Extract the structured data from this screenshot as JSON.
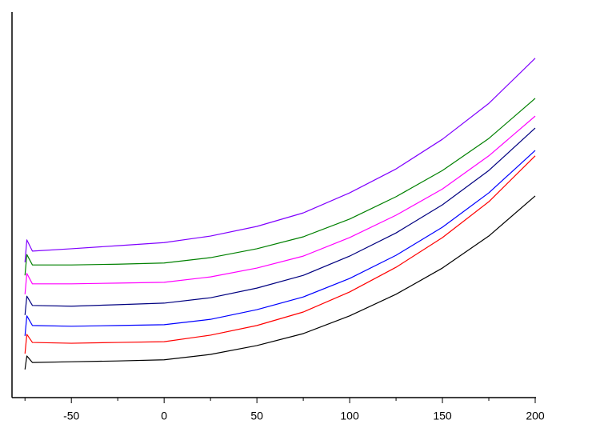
{
  "chart_data": {
    "type": "line",
    "x": [
      -75,
      -74,
      -71,
      -50,
      -25,
      0,
      25,
      50,
      75,
      100,
      125,
      150,
      175,
      200
    ],
    "series": [
      {
        "color": "#000000",
        "values": [
          7.3,
          10.8,
          9.1,
          9.3,
          9.5,
          9.8,
          11.2,
          13.5,
          16.6,
          21.2,
          26.8,
          33.6,
          41.9,
          52.3
        ]
      },
      {
        "color": "#ff0000",
        "values": [
          11.4,
          16.4,
          14.3,
          14.1,
          14.3,
          14.5,
          16.2,
          18.7,
          22.2,
          27.4,
          33.8,
          41.5,
          50.8,
          62.7
        ]
      },
      {
        "color": "#0000ff",
        "values": [
          16.0,
          21.2,
          18.7,
          18.5,
          18.7,
          18.9,
          20.3,
          22.8,
          26.1,
          30.9,
          36.9,
          44.2,
          53.1,
          64.1
        ]
      },
      {
        "color": "#000080",
        "values": [
          21.4,
          26.3,
          23.9,
          23.7,
          24.1,
          24.5,
          25.9,
          28.4,
          31.7,
          36.7,
          42.7,
          50.0,
          58.9,
          69.9
        ]
      },
      {
        "color": "#ff00ff",
        "values": [
          26.8,
          32.2,
          29.5,
          29.5,
          29.7,
          29.9,
          31.3,
          33.6,
          36.7,
          41.5,
          47.3,
          54.1,
          62.7,
          73.0
        ]
      },
      {
        "color": "#008000",
        "values": [
          31.7,
          37.1,
          34.4,
          34.4,
          34.6,
          34.9,
          36.3,
          38.6,
          41.7,
          46.3,
          52.1,
          58.9,
          67.2,
          77.6
        ]
      },
      {
        "color": "#8000ff",
        "values": [
          35.1,
          40.9,
          38.0,
          38.6,
          39.4,
          40.2,
          41.9,
          44.4,
          47.9,
          53.1,
          59.3,
          67.0,
          76.3,
          88.0
        ]
      }
    ],
    "xlim": [
      -82,
      200
    ],
    "xticks": [
      -50,
      0,
      50,
      100,
      150,
      200
    ],
    "xminor_ticks": [
      -75,
      -25,
      25,
      75,
      125,
      175
    ],
    "ylim": [
      0,
      100
    ],
    "grid": false
  }
}
